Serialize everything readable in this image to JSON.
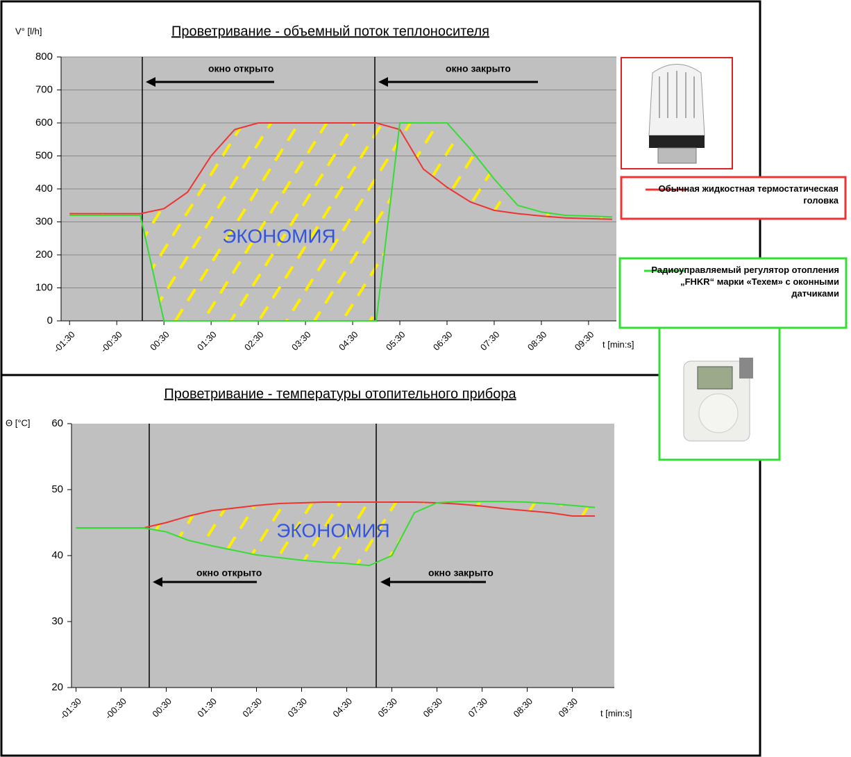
{
  "chart_data": [
    {
      "type": "line",
      "title": "Проветривание - объемный поток теплоносителя",
      "y_label": "V° [l/h]",
      "x_label": "t [min:s]",
      "annotations": [
        "окно открыто",
        "окно закрыто",
        "ЭКОНОМИЯ"
      ],
      "x": [
        -1.5,
        -1,
        -0.5,
        0,
        0.5,
        1,
        1.5,
        2,
        2.5,
        3,
        3.5,
        4,
        4.5,
        5,
        5.5,
        6,
        6.5,
        7,
        7.5,
        8,
        8.5,
        9,
        9.5,
        10
      ],
      "series": [
        {
          "name": "Обычная жидкостная термостатическая головка",
          "color": "#ee3333",
          "values": [
            325,
            325,
            325,
            325,
            340,
            390,
            500,
            580,
            600,
            600,
            600,
            600,
            600,
            600,
            580,
            460,
            405,
            360,
            335,
            325,
            318,
            312,
            310,
            308
          ]
        },
        {
          "name": "Радиоуправляемый регулятор отопления „FHKR“ марки «Техем» с оконными датчиками",
          "color": "#33dd33",
          "values": [
            320,
            320,
            320,
            320,
            0,
            0,
            0,
            0,
            0,
            0,
            0,
            0,
            0,
            0,
            600,
            600,
            600,
            520,
            430,
            350,
            330,
            320,
            318,
            315
          ]
        }
      ],
      "xlim": [
        -1.68,
        10.09
      ],
      "ylim": [
        0,
        800
      ],
      "yticks": [
        0,
        100,
        200,
        300,
        400,
        500,
        600,
        700,
        800
      ],
      "xticks": [
        {
          "value": -1.5,
          "label": "-01:30"
        },
        {
          "value": -0.5,
          "label": "-00:30"
        },
        {
          "value": 0.5,
          "label": "00:30"
        },
        {
          "value": 1.5,
          "label": "01:30"
        },
        {
          "value": 2.5,
          "label": "02:30"
        },
        {
          "value": 3.5,
          "label": "03:30"
        },
        {
          "value": 4.5,
          "label": "04:30"
        },
        {
          "value": 5.5,
          "label": "05:30"
        },
        {
          "value": 6.5,
          "label": "06:30"
        },
        {
          "value": 7.5,
          "label": "07:30"
        },
        {
          "value": 8.5,
          "label": "08:30"
        },
        {
          "value": 9.5,
          "label": "09:30"
        }
      ],
      "grid": true
    },
    {
      "type": "line",
      "title": "Проветривание - температуры отопительного прибора",
      "y_label": "Θ [°C]",
      "x_label": "t [min:s]",
      "annotations": [
        "окно открыто",
        "окно закрыто",
        "ЭКОНОМИЯ"
      ],
      "x": [
        -1.5,
        -1,
        -0.5,
        0,
        0.5,
        1,
        1.5,
        2,
        2.5,
        3,
        3.5,
        4,
        4.5,
        5,
        5.5,
        6,
        6.5,
        7,
        7.5,
        8,
        8.5,
        9,
        9.5,
        10
      ],
      "series": [
        {
          "color": "#ee3333",
          "values": [
            44.2,
            44.2,
            44.2,
            44.2,
            45,
            46,
            46.8,
            47.2,
            47.6,
            47.9,
            48,
            48.1,
            48.1,
            48.1,
            48.1,
            48.1,
            48,
            47.8,
            47.5,
            47.1,
            46.8,
            46.5,
            46,
            46
          ]
        },
        {
          "color": "#33dd33",
          "values": [
            44.2,
            44.2,
            44.2,
            44.2,
            43.6,
            42.3,
            41.5,
            40.8,
            40.1,
            39.7,
            39.3,
            39,
            38.8,
            38.5,
            40,
            46.5,
            48,
            48.2,
            48.2,
            48.2,
            48.1,
            47.9,
            47.6,
            47.3
          ]
        }
      ],
      "xlim": [
        -1.6,
        10.43
      ],
      "ylim": [
        20,
        60
      ],
      "yticks": [
        20,
        30,
        40,
        50,
        60
      ],
      "xticks": [
        {
          "value": -1.5,
          "label": "-01:30"
        },
        {
          "value": -0.5,
          "label": "-00:30"
        },
        {
          "value": 0.5,
          "label": "00:30"
        },
        {
          "value": 1.5,
          "label": "01:30"
        },
        {
          "value": 2.5,
          "label": "02:30"
        },
        {
          "value": 3.5,
          "label": "03:30"
        },
        {
          "value": 4.5,
          "label": "04:30"
        },
        {
          "value": 5.5,
          "label": "05:30"
        },
        {
          "value": 6.5,
          "label": "06:30"
        },
        {
          "value": 7.5,
          "label": "07:30"
        },
        {
          "value": 8.5,
          "label": "08:30"
        },
        {
          "value": 9.5,
          "label": "09:30"
        }
      ],
      "grid": false
    }
  ]
}
